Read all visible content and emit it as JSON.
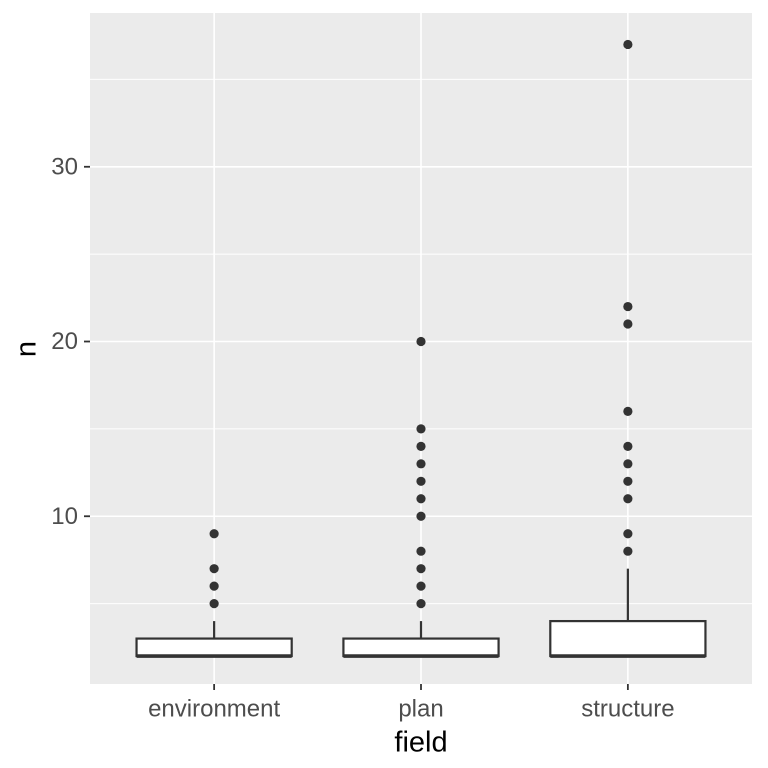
{
  "chart_data": {
    "type": "boxplot",
    "title": "",
    "xlabel": "field",
    "ylabel": "n",
    "categories": [
      "environment",
      "plan",
      "structure"
    ],
    "y_axis": {
      "ticks": [
        10,
        20,
        30
      ],
      "minor_ticks": [
        5,
        15,
        25,
        35
      ],
      "range": [
        0.4,
        38.8
      ]
    },
    "x_axis": {
      "expand_lower": 0.6,
      "expand_upper": 0.6,
      "box_width_fraction": 0.75
    },
    "series": [
      {
        "category": "environment",
        "q1": 2,
        "median": 2,
        "q3": 3,
        "whisker_low": 2,
        "whisker_high": 4,
        "outliers": [
          5,
          6,
          7,
          9
        ]
      },
      {
        "category": "plan",
        "q1": 2,
        "median": 2,
        "q3": 3,
        "whisker_low": 2,
        "whisker_high": 4,
        "outliers": [
          5,
          6,
          7,
          8,
          10,
          11,
          12,
          13,
          14,
          15,
          20
        ]
      },
      {
        "category": "structure",
        "q1": 2,
        "median": 2,
        "q3": 4,
        "whisker_low": 2,
        "whisker_high": 7,
        "outliers": [
          8,
          9,
          11,
          12,
          13,
          14,
          16,
          21,
          22,
          37
        ]
      }
    ],
    "legend": "none",
    "grid": true,
    "colors": {
      "figure_background": "#FFFFFF",
      "panel_background": "#EBEBEB",
      "gridline": "#FFFFFF",
      "box_fill": "#FFFFFF",
      "box_stroke": "#333333",
      "outlier": "#333333",
      "tick_mark": "#333333",
      "axis_text": "#4D4D4D",
      "axis_title": "#000000"
    }
  }
}
